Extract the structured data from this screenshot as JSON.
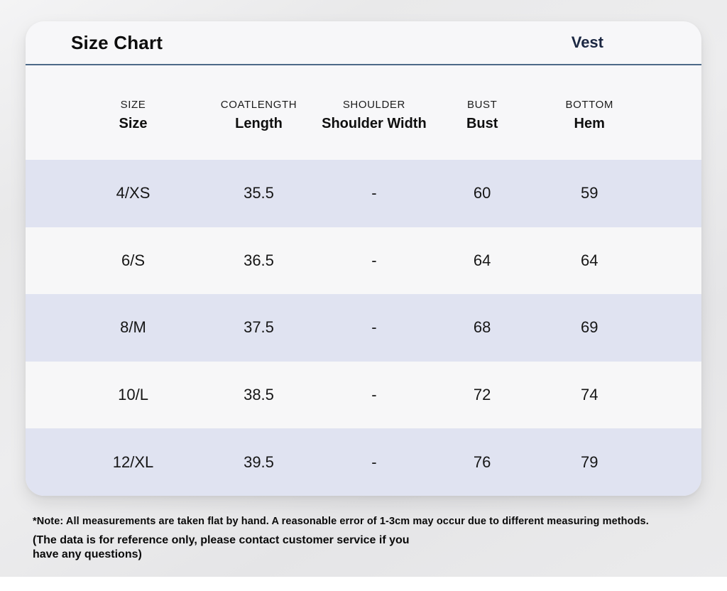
{
  "header": {
    "title": "Size Chart",
    "product": "Vest"
  },
  "chart_data": {
    "type": "table",
    "title": "Size Chart",
    "subtitle": "Vest",
    "columns": [
      {
        "top": "SIZE",
        "main": "Size"
      },
      {
        "top": "COATLENGTH",
        "main": "Length"
      },
      {
        "top": "SHOULDER",
        "main": "Shoulder Width"
      },
      {
        "top": "BUST",
        "main": "Bust"
      },
      {
        "top": "BOTTOM",
        "main": "Hem"
      }
    ],
    "rows": [
      [
        "4/XS",
        "35.5",
        "-",
        "60",
        "59"
      ],
      [
        "6/S",
        "36.5",
        "-",
        "64",
        "64"
      ],
      [
        "8/M",
        "37.5",
        "-",
        "68",
        "69"
      ],
      [
        "10/L",
        "38.5",
        "-",
        "72",
        "74"
      ],
      [
        "12/XL",
        "39.5",
        "-",
        "76",
        "79"
      ]
    ]
  },
  "notes": {
    "line1": "*Note: All measurements are taken flat by hand. A reasonable error of 1-3cm may occur due to different measuring methods.",
    "line2": "(The data is for reference only, please contact customer service if you",
    "line3": "have any questions)"
  },
  "colors": {
    "divider": "#4d6988",
    "row_alt": "#e0e3f1",
    "row_base": "#f7f7f8",
    "card_bg": "#f7f7f9",
    "page_bg": "#e9e9ea",
    "product_text": "#1b2742",
    "text": "#161616"
  }
}
